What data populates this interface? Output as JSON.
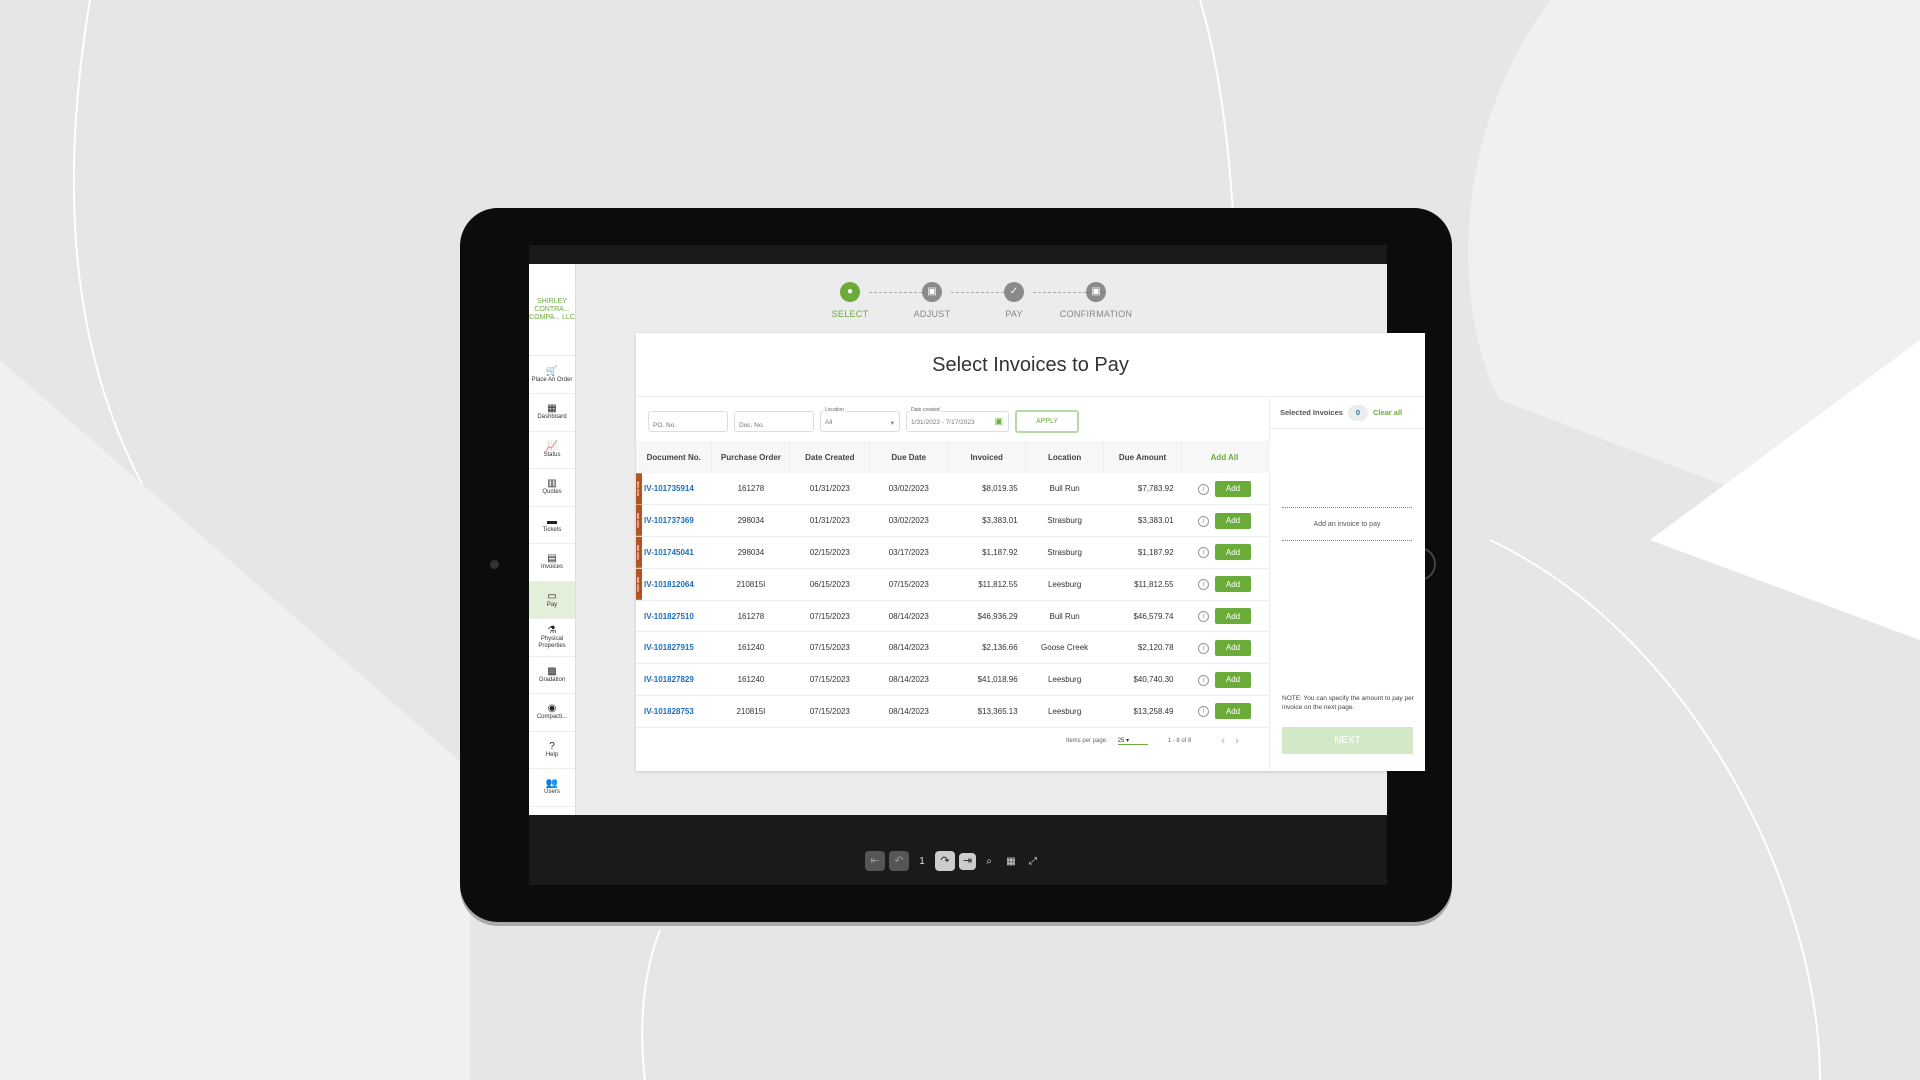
{
  "brand": "SHIRLEY CONTRA... COMPA... LLC",
  "sidebar": [
    {
      "label": "Place An Order",
      "icon": "cart-icon",
      "glyph": "🛒"
    },
    {
      "label": "Dashboard",
      "icon": "dashboard-icon",
      "glyph": "▦"
    },
    {
      "label": "Status",
      "icon": "chart-line-icon",
      "glyph": "📈"
    },
    {
      "label": "Quotes",
      "icon": "bar-chart-icon",
      "glyph": "▥"
    },
    {
      "label": "Tickets",
      "icon": "ticket-icon",
      "glyph": "▬"
    },
    {
      "label": "Invoices",
      "icon": "invoice-icon",
      "glyph": "▤"
    },
    {
      "label": "Pay",
      "icon": "credit-card-icon",
      "glyph": "▭",
      "active": true
    },
    {
      "label": "Physical Properties",
      "icon": "flask-icon",
      "glyph": "⚗"
    },
    {
      "label": "Gradation",
      "icon": "gradation-icon",
      "glyph": "▩"
    },
    {
      "label": "Compacti...",
      "icon": "target-icon",
      "glyph": "◉"
    },
    {
      "label": "Help",
      "icon": "help-icon",
      "glyph": "?"
    },
    {
      "label": "Users",
      "icon": "users-icon",
      "glyph": "👥"
    }
  ],
  "steps": [
    {
      "label": "SELECT",
      "glyph": "●"
    },
    {
      "label": "ADJUST",
      "glyph": "▣"
    },
    {
      "label": "PAY",
      "glyph": "✓"
    },
    {
      "label": "CONFIRMATION",
      "glyph": "▣"
    }
  ],
  "title": "Select Invoices to Pay",
  "filters": {
    "po_placeholder": "PO. No.",
    "doc_placeholder": "Doc. No.",
    "location_label": "Location",
    "location_value": "All",
    "date_label": "Date created",
    "date_value": "1/31/2023 - 7/17/2023",
    "apply": "APPLY"
  },
  "columns": [
    "Document No.",
    "Purchase Order",
    "Date Created",
    "Due Date",
    "Invoiced",
    "Location",
    "Due Amount",
    "Add All"
  ],
  "past_due_label": "PAST DUE",
  "add_label": "Add",
  "rows": [
    [
      "IV-101735914",
      "161278",
      "01/31/2023",
      "03/02/2023",
      "$8,019.35",
      "Bull Run",
      "$7,783.92",
      true
    ],
    [
      "IV-101737369",
      "298034",
      "01/31/2023",
      "03/02/2023",
      "$3,383.01",
      "Strasburg",
      "$3,383.01",
      true
    ],
    [
      "IV-101745041",
      "298034",
      "02/15/2023",
      "03/17/2023",
      "$1,187.92",
      "Strasburg",
      "$1,187.92",
      true
    ],
    [
      "IV-101812064",
      "210815I",
      "06/15/2023",
      "07/15/2023",
      "$11,812.55",
      "Leesburg",
      "$11,812.55",
      true
    ],
    [
      "IV-101827510",
      "161278",
      "07/15/2023",
      "08/14/2023",
      "$46,936.29",
      "Bull Run",
      "$46,579.74",
      false
    ],
    [
      "IV-101827915",
      "161240",
      "07/15/2023",
      "08/14/2023",
      "$2,136.66",
      "Goose Creek",
      "$2,120.78",
      false
    ],
    [
      "IV-101827829",
      "161240",
      "07/15/2023",
      "08/14/2023",
      "$41,018.96",
      "Leesburg",
      "$40,740.30",
      false
    ],
    [
      "IV-101828753",
      "210815I",
      "07/15/2023",
      "08/14/2023",
      "$13,365.13",
      "Leesburg",
      "$13,258.49",
      false
    ]
  ],
  "pager": {
    "items_label": "Items per page:",
    "per_page": "25",
    "range": "1 - 8 of 8"
  },
  "panel": {
    "title": "Selected Invoices",
    "count": "0",
    "clear": "Clear all",
    "empty": "Add an invoice to pay",
    "note": "NOTE: You can specify the amount to pay per invoice on the next page.",
    "next": "NEXT"
  },
  "viewer": {
    "page": "1"
  },
  "colors": {
    "accent": "#6aab3a",
    "link": "#1a6fc0",
    "past_due": "#b5521f"
  }
}
